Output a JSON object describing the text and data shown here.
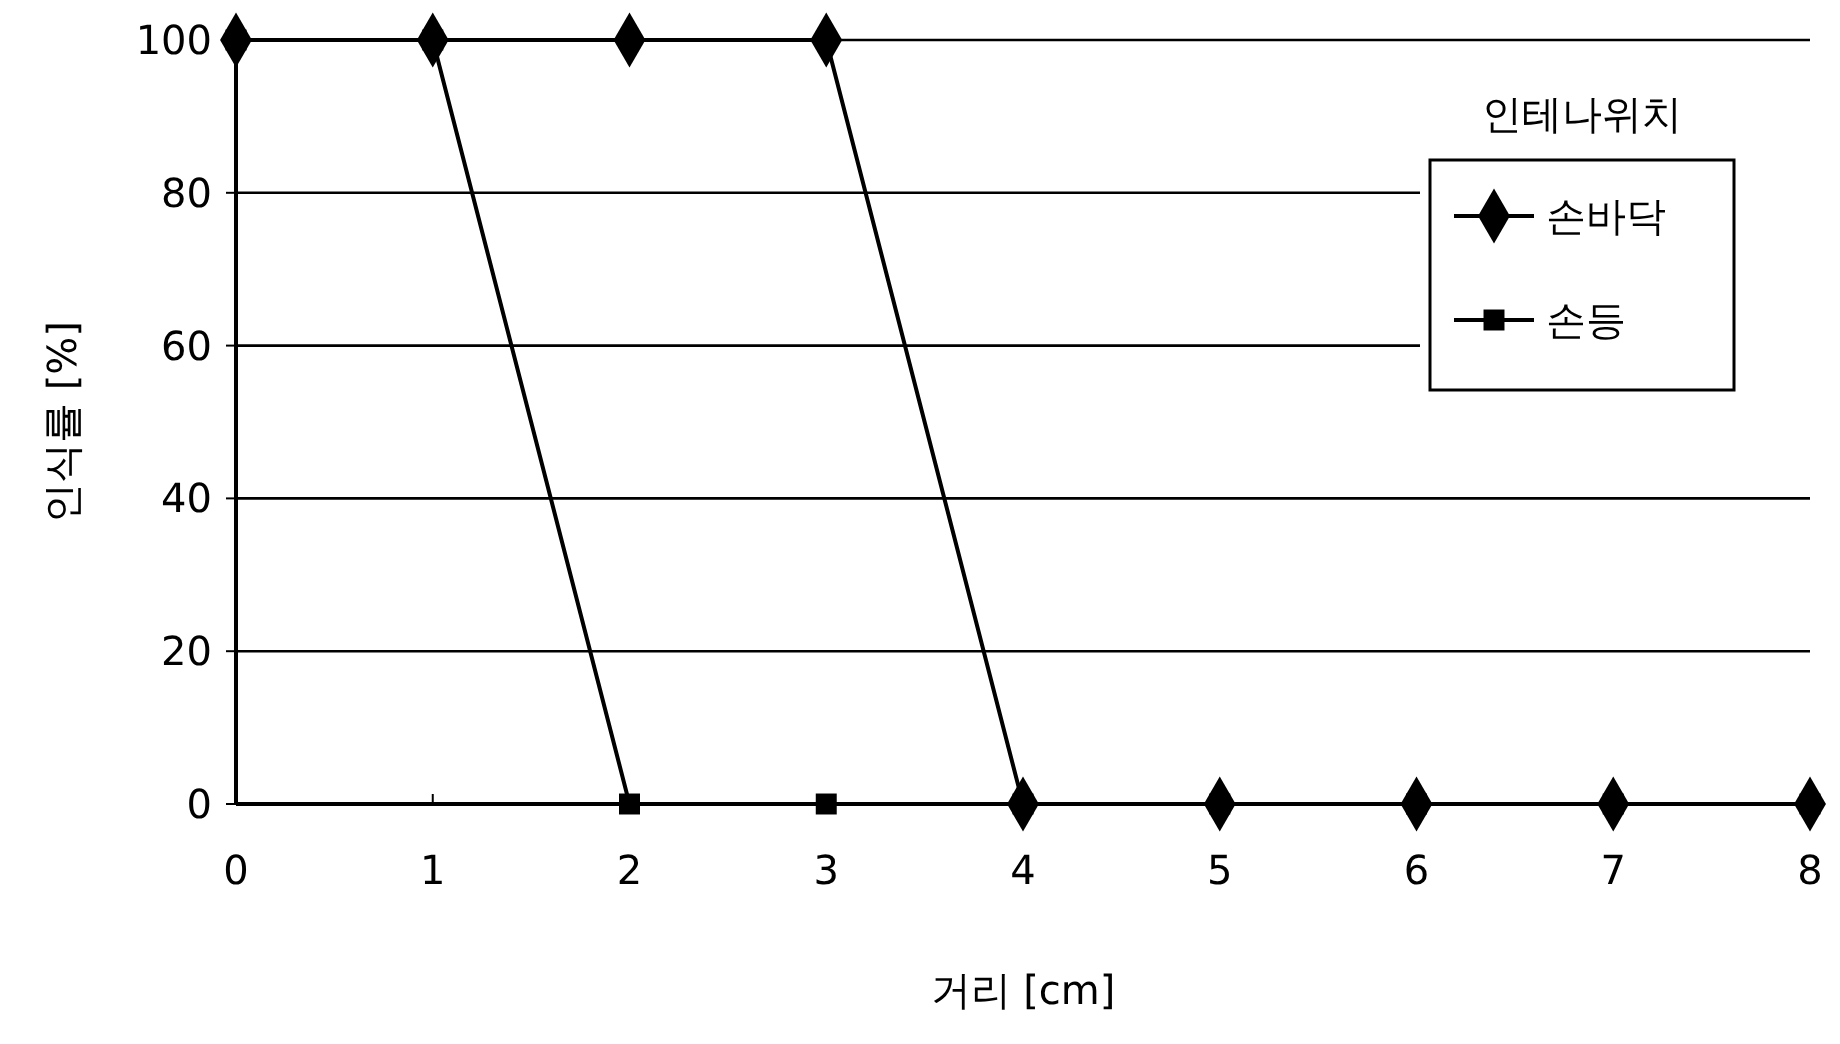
{
  "chart_data": {
    "type": "line",
    "xlabel": "거리 [cm]",
    "ylabel": "인식률 [%]",
    "legend_title": "인테나위치",
    "x": [
      0,
      1,
      2,
      3,
      4,
      5,
      6,
      7,
      8
    ],
    "xlim": [
      0,
      8
    ],
    "xticks": [
      0,
      1,
      2,
      3,
      4,
      5,
      6,
      7,
      8
    ],
    "ylim": [
      0,
      100
    ],
    "yticks": [
      0,
      20,
      40,
      60,
      80,
      100
    ],
    "grid": "y",
    "legend": "top right",
    "line_style": "solid",
    "series": [
      {
        "name": "손바닥",
        "color": "#000000",
        "marker": "diamond",
        "values": [
          100,
          100,
          100,
          100,
          0,
          0,
          0,
          0,
          0
        ]
      },
      {
        "name": "손등",
        "color": "#000000",
        "marker": "square",
        "values": [
          100,
          100,
          0,
          0,
          0,
          0,
          0,
          0,
          0
        ]
      }
    ]
  }
}
